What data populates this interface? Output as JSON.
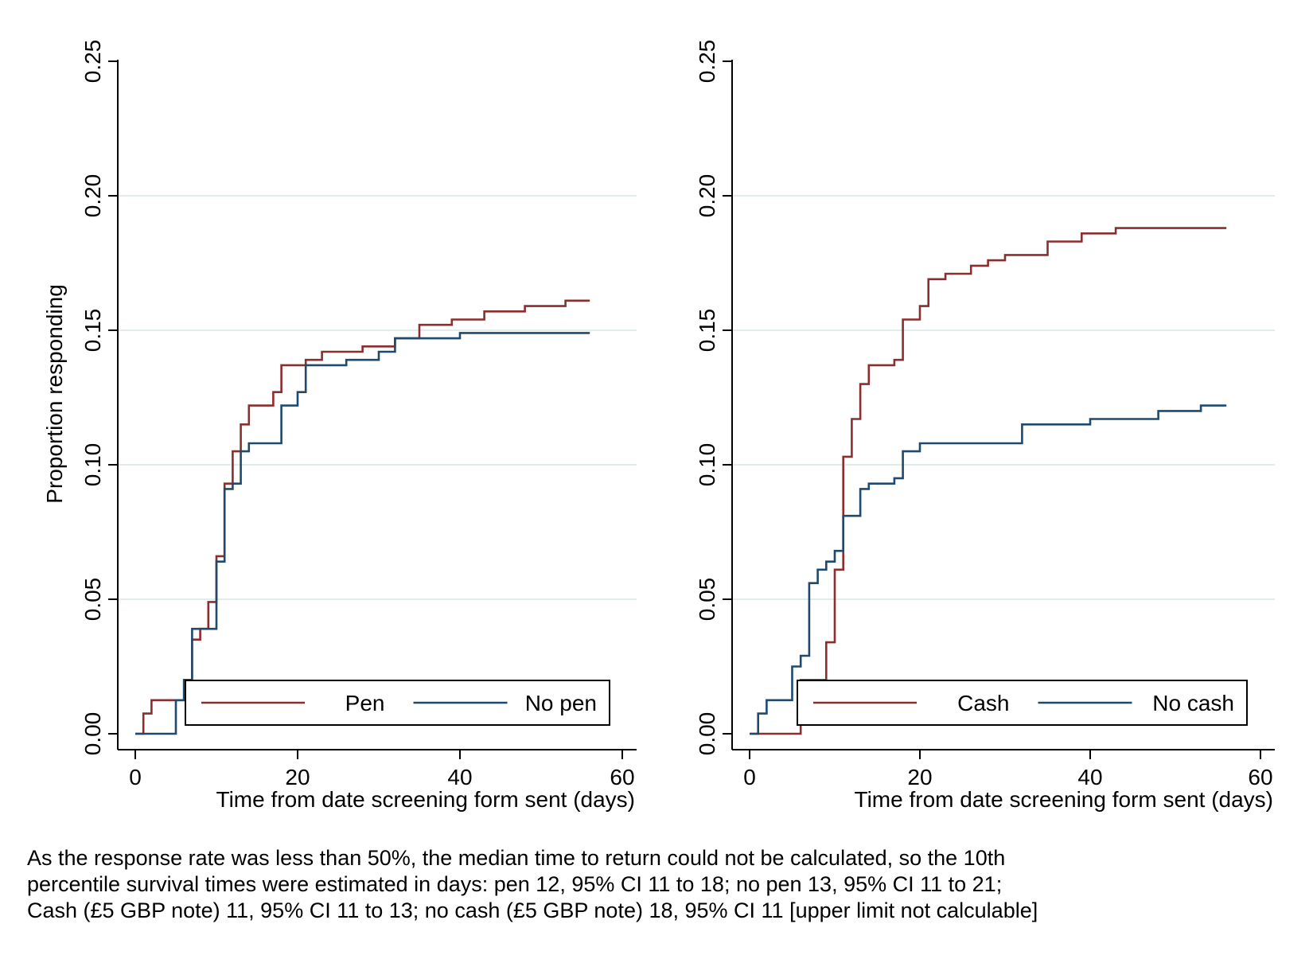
{
  "chart_data": [
    {
      "type": "line",
      "step": true,
      "ylabel": "Proportion responding",
      "xlabel": "Time from date screening form sent (days)",
      "xlim": [
        0,
        60
      ],
      "ylim": [
        0,
        0.25
      ],
      "x_ticks": [
        0,
        20,
        40,
        60
      ],
      "y_ticks": [
        0.0,
        0.05,
        0.1,
        0.15,
        0.2,
        0.25
      ],
      "y_tick_labels": [
        "0.00",
        "0.05",
        "0.10",
        "0.15",
        "0.20",
        "0.25"
      ],
      "grid": true,
      "legend_position": "bottom-right",
      "series": [
        {
          "name": "Pen",
          "color": "#8b2e2e",
          "points": [
            [
              0,
              0
            ],
            [
              1,
              0
            ],
            [
              1,
              0.0075
            ],
            [
              2,
              0.0075
            ],
            [
              2,
              0.0125
            ],
            [
              6,
              0.0125
            ],
            [
              6,
              0.02
            ],
            [
              7,
              0.02
            ],
            [
              7,
              0.035
            ],
            [
              8,
              0.035
            ],
            [
              8,
              0.039
            ],
            [
              9,
              0.039
            ],
            [
              9,
              0.049
            ],
            [
              10,
              0.049
            ],
            [
              10,
              0.066
            ],
            [
              11,
              0.066
            ],
            [
              11,
              0.093
            ],
            [
              12,
              0.093
            ],
            [
              12,
              0.105
            ],
            [
              13,
              0.105
            ],
            [
              13,
              0.115
            ],
            [
              14,
              0.115
            ],
            [
              14,
              0.122
            ],
            [
              17,
              0.122
            ],
            [
              17,
              0.127
            ],
            [
              18,
              0.127
            ],
            [
              18,
              0.137
            ],
            [
              21,
              0.137
            ],
            [
              21,
              0.139
            ],
            [
              23,
              0.139
            ],
            [
              23,
              0.142
            ],
            [
              28,
              0.142
            ],
            [
              28,
              0.144
            ],
            [
              32,
              0.144
            ],
            [
              32,
              0.147
            ],
            [
              35,
              0.147
            ],
            [
              35,
              0.152
            ],
            [
              39,
              0.152
            ],
            [
              39,
              0.154
            ],
            [
              43,
              0.154
            ],
            [
              43,
              0.157
            ],
            [
              48,
              0.157
            ],
            [
              48,
              0.159
            ],
            [
              53,
              0.159
            ],
            [
              53,
              0.161
            ],
            [
              56,
              0.161
            ]
          ]
        },
        {
          "name": "No pen",
          "color": "#1d4a6e",
          "points": [
            [
              0,
              0
            ],
            [
              5,
              0
            ],
            [
              5,
              0.0125
            ],
            [
              6,
              0.0125
            ],
            [
              6,
              0.02
            ],
            [
              7,
              0.02
            ],
            [
              7,
              0.039
            ],
            [
              10,
              0.039
            ],
            [
              10,
              0.064
            ],
            [
              11,
              0.064
            ],
            [
              11,
              0.091
            ],
            [
              12,
              0.091
            ],
            [
              12,
              0.093
            ],
            [
              13,
              0.093
            ],
            [
              13,
              0.105
            ],
            [
              14,
              0.105
            ],
            [
              14,
              0.108
            ],
            [
              18,
              0.108
            ],
            [
              18,
              0.122
            ],
            [
              20,
              0.122
            ],
            [
              20,
              0.127
            ],
            [
              21,
              0.127
            ],
            [
              21,
              0.137
            ],
            [
              26,
              0.137
            ],
            [
              26,
              0.139
            ],
            [
              30,
              0.139
            ],
            [
              30,
              0.142
            ],
            [
              32,
              0.142
            ],
            [
              32,
              0.147
            ],
            [
              40,
              0.147
            ],
            [
              40,
              0.149
            ],
            [
              56,
              0.149
            ]
          ]
        }
      ]
    },
    {
      "type": "line",
      "step": true,
      "ylabel": "",
      "xlabel": "Time from date screening form sent (days)",
      "xlim": [
        0,
        60
      ],
      "ylim": [
        0,
        0.25
      ],
      "x_ticks": [
        0,
        20,
        40,
        60
      ],
      "y_ticks": [
        0.0,
        0.05,
        0.1,
        0.15,
        0.2,
        0.25
      ],
      "y_tick_labels": [
        "0.00",
        "0.05",
        "0.10",
        "0.15",
        "0.20",
        "0.25"
      ],
      "grid": true,
      "legend_position": "bottom-right",
      "series": [
        {
          "name": "Cash",
          "color": "#8b2e2e",
          "points": [
            [
              0,
              0
            ],
            [
              6,
              0
            ],
            [
              6,
              0.02
            ],
            [
              9,
              0.02
            ],
            [
              9,
              0.034
            ],
            [
              10,
              0.034
            ],
            [
              10,
              0.061
            ],
            [
              11,
              0.061
            ],
            [
              11,
              0.103
            ],
            [
              12,
              0.103
            ],
            [
              12,
              0.117
            ],
            [
              13,
              0.117
            ],
            [
              13,
              0.13
            ],
            [
              14,
              0.13
            ],
            [
              14,
              0.137
            ],
            [
              17,
              0.137
            ],
            [
              17,
              0.139
            ],
            [
              18,
              0.139
            ],
            [
              18,
              0.154
            ],
            [
              20,
              0.154
            ],
            [
              20,
              0.159
            ],
            [
              21,
              0.159
            ],
            [
              21,
              0.169
            ],
            [
              23,
              0.169
            ],
            [
              23,
              0.171
            ],
            [
              26,
              0.171
            ],
            [
              26,
              0.174
            ],
            [
              28,
              0.174
            ],
            [
              28,
              0.176
            ],
            [
              30,
              0.176
            ],
            [
              30,
              0.178
            ],
            [
              35,
              0.178
            ],
            [
              35,
              0.183
            ],
            [
              39,
              0.183
            ],
            [
              39,
              0.186
            ],
            [
              43,
              0.186
            ],
            [
              43,
              0.188
            ],
            [
              56,
              0.188
            ]
          ]
        },
        {
          "name": "No cash",
          "color": "#1d4a6e",
          "points": [
            [
              0,
              0
            ],
            [
              1,
              0
            ],
            [
              1,
              0.0075
            ],
            [
              2,
              0.0075
            ],
            [
              2,
              0.0125
            ],
            [
              5,
              0.0125
            ],
            [
              5,
              0.025
            ],
            [
              6,
              0.025
            ],
            [
              6,
              0.029
            ],
            [
              7,
              0.029
            ],
            [
              7,
              0.056
            ],
            [
              8,
              0.056
            ],
            [
              8,
              0.061
            ],
            [
              9,
              0.061
            ],
            [
              9,
              0.064
            ],
            [
              10,
              0.064
            ],
            [
              10,
              0.068
            ],
            [
              11,
              0.068
            ],
            [
              11,
              0.081
            ],
            [
              13,
              0.081
            ],
            [
              13,
              0.091
            ],
            [
              14,
              0.091
            ],
            [
              14,
              0.093
            ],
            [
              17,
              0.093
            ],
            [
              17,
              0.095
            ],
            [
              18,
              0.095
            ],
            [
              18,
              0.105
            ],
            [
              20,
              0.105
            ],
            [
              20,
              0.108
            ],
            [
              32,
              0.108
            ],
            [
              32,
              0.115
            ],
            [
              40,
              0.115
            ],
            [
              40,
              0.117
            ],
            [
              48,
              0.117
            ],
            [
              48,
              0.12
            ],
            [
              53,
              0.12
            ],
            [
              53,
              0.122
            ],
            [
              56,
              0.122
            ]
          ]
        }
      ]
    }
  ],
  "footnote": [
    "As the response rate was less than 50%, the median time to return could not be calculated, so the 10th",
    "percentile survival times were estimated in days: pen 12, 95% CI 11 to 18; no pen 13, 95% CI 11 to 21;",
    "Cash (£5 GBP note) 11, 95% CI 11 to 13; no cash (£5 GBP note) 18, 95% CI 11 [upper limit not calculable]"
  ]
}
